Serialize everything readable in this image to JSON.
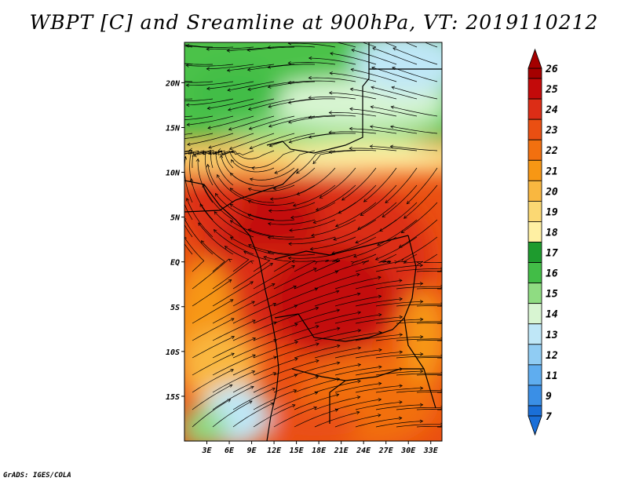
{
  "title": "WBPT [C] and Sreamline at 900hPa, VT: 2019110212",
  "credit": "GrADS: IGES/COLA",
  "map": {
    "lat_labels": [
      "20N",
      "15N",
      "10N",
      "5N",
      "EQ",
      "5S",
      "10S",
      "15S"
    ],
    "lat_values": [
      20,
      15,
      10,
      5,
      0,
      -5,
      -10,
      -15
    ],
    "lon_labels": [
      "3E",
      "6E",
      "9E",
      "12E",
      "15E",
      "18E",
      "21E",
      "24E",
      "27E",
      "30E",
      "33E"
    ],
    "lon_values": [
      3,
      6,
      9,
      12,
      15,
      18,
      21,
      24,
      27,
      30,
      33
    ],
    "lon_range": [
      0,
      34.5
    ],
    "lat_range": [
      -20,
      24.5
    ]
  },
  "colorbar": {
    "labels": [
      "26",
      "25",
      "24",
      "23",
      "22",
      "21",
      "20",
      "19",
      "18",
      "17",
      "16",
      "15",
      "14",
      "13",
      "12",
      "11",
      "9",
      "7"
    ],
    "colors": [
      "#a50000",
      "#c30a0a",
      "#dc2d16",
      "#ea4f12",
      "#f2700f",
      "#f79714",
      "#f9b740",
      "#fbd873",
      "#fff0a3",
      "#1e9b2e",
      "#42bd47",
      "#8fdc82",
      "#d8f5d2",
      "#bfe7f7",
      "#90ccf3",
      "#5fadef",
      "#3a8fe6",
      "#1a6fd8"
    ]
  }
}
